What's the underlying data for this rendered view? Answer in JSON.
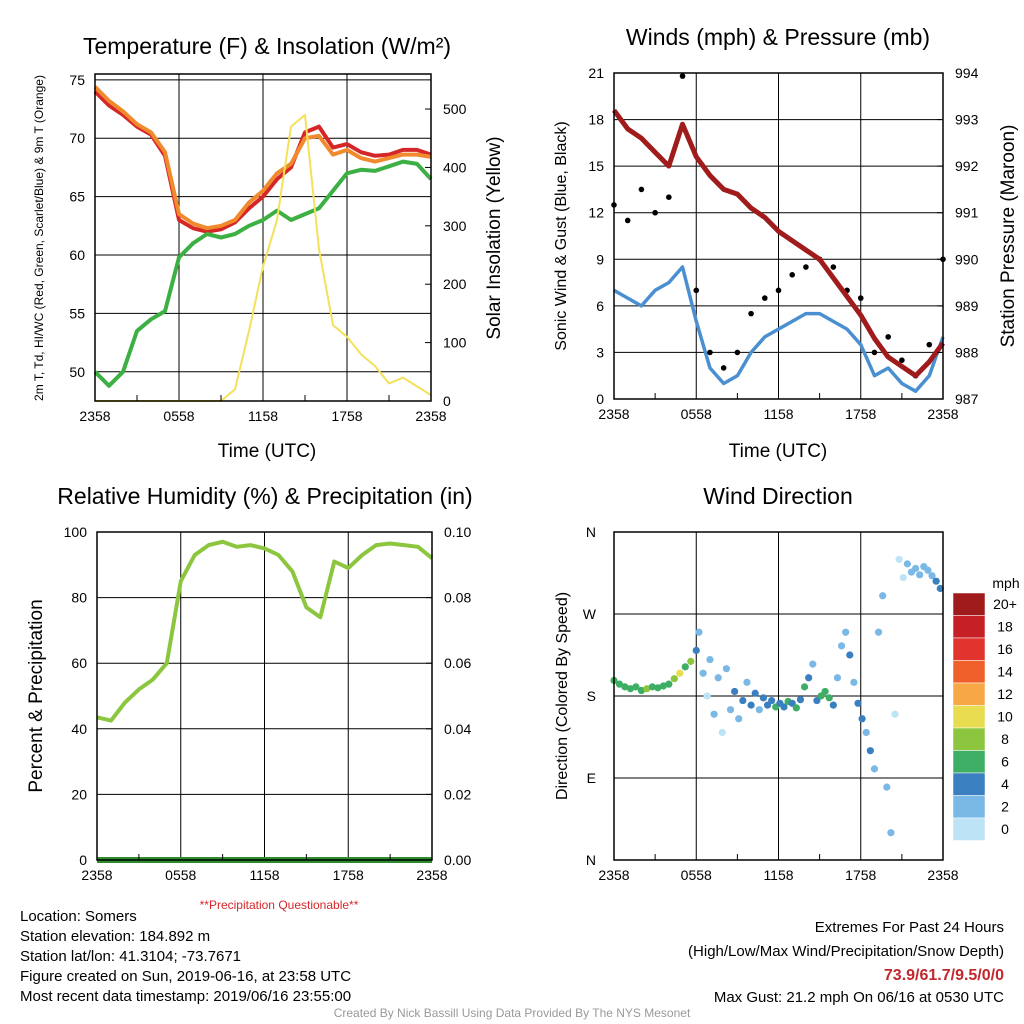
{
  "colors": {
    "red": "#d62728",
    "orange": "#f08a2c",
    "green": "#3cb043",
    "yellow": "#f5e05a",
    "blue": "#4a90d0",
    "black": "#000000",
    "maroon": "#a01c1c",
    "rh_green": "#8cc63f",
    "precip_green": "#2e8b2e",
    "warning_red": "#d62728"
  },
  "x_ticks": [
    "2358",
    "0558",
    "1158",
    "1758",
    "2358"
  ],
  "footer": {
    "location": "Location: Somers",
    "elevation": "Station elevation: 184.892 m",
    "latlon": "Station lat/lon: 41.3104; -73.7671",
    "created": "Figure created on Sun, 2019-06-16, at 23:58 UTC",
    "recent": "Most recent data timestamp: 2019/06/16 23:55:00",
    "extremes_title": "Extremes For Past 24 Hours",
    "extremes_sub": "(High/Low/Max Wind/Precipitation/Snow Depth)",
    "extremes_values": "73.9/61.7/9.5/0/0",
    "max_gust": "Max Gust: 21.2 mph On 06/16 at 0530 UTC",
    "credit": "Created By Nick Bassill Using Data Provided By The NYS Mesonet"
  },
  "chart_data": [
    {
      "type": "line",
      "title": "Temperature (F) & Insolation (W/m²)",
      "xlabel": "Time (UTC)",
      "ylabel": "2m T, Td, HI/WC (Red, Green, Scarlet/Blue) & 9m T (Orange)",
      "ylabel_right": "Solar Insolation (Yellow)",
      "ylim": [
        47.5,
        75.5
      ],
      "y2lim": [
        0,
        560
      ],
      "yticks": [
        50,
        55,
        60,
        65,
        70,
        75
      ],
      "y2ticks": [
        0,
        100,
        200,
        300,
        400,
        500
      ],
      "x": [
        0,
        1,
        2,
        3,
        4,
        5,
        6,
        7,
        8,
        9,
        10,
        11,
        12,
        13,
        14,
        15,
        16,
        17,
        18,
        19,
        20,
        21,
        22,
        23,
        24
      ],
      "series": [
        {
          "color": "red",
          "values": [
            74.0,
            72.8,
            72.0,
            71.0,
            70.3,
            68.5,
            63.0,
            62.3,
            62.0,
            62.2,
            62.8,
            64.0,
            65.0,
            66.5,
            67.5,
            70.5,
            71.0,
            69.2,
            69.5,
            68.8,
            68.5,
            68.6,
            69.0,
            69.0,
            68.6
          ]
        },
        {
          "color": "orange",
          "values": [
            74.4,
            73.2,
            72.3,
            71.2,
            70.5,
            68.8,
            63.5,
            62.7,
            62.3,
            62.5,
            63.0,
            64.5,
            65.5,
            67.0,
            67.8,
            70.0,
            70.2,
            68.6,
            69.0,
            68.3,
            68.0,
            68.3,
            68.6,
            68.6,
            68.4
          ]
        },
        {
          "color": "green",
          "values": [
            50.0,
            48.8,
            50.0,
            53.5,
            54.5,
            55.2,
            59.8,
            61.0,
            61.8,
            61.5,
            61.8,
            62.5,
            63.0,
            63.8,
            63.0,
            63.5,
            64.0,
            65.5,
            67.0,
            67.3,
            67.2,
            67.6,
            68.0,
            67.8,
            66.5
          ]
        },
        {
          "color": "yellow",
          "axis": "right",
          "values": [
            0,
            0,
            0,
            0,
            0,
            0,
            0,
            0,
            0,
            0,
            20,
            120,
            230,
            310,
            470,
            490,
            260,
            130,
            110,
            80,
            60,
            30,
            40,
            25,
            10
          ]
        }
      ]
    },
    {
      "type": "line",
      "title": "Winds (mph) & Pressure (mb)",
      "xlabel": "Time (UTC)",
      "ylabel": "Sonic Wind & Gust (Blue, Black)",
      "ylabel_right": "Station Pressure (Maroon)",
      "ylim": [
        0,
        21
      ],
      "y2lim": [
        987,
        994
      ],
      "yticks": [
        0,
        3,
        6,
        9,
        12,
        15,
        18,
        21
      ],
      "y2ticks": [
        987,
        988,
        989,
        990,
        991,
        992,
        993,
        994
      ],
      "x": [
        0,
        1,
        2,
        3,
        4,
        5,
        6,
        7,
        8,
        9,
        10,
        11,
        12,
        13,
        14,
        15,
        16,
        17,
        18,
        19,
        20,
        21,
        22,
        23,
        24
      ],
      "series": [
        {
          "color": "blue",
          "values": [
            7.0,
            6.5,
            6.0,
            7.0,
            7.5,
            8.5,
            5.0,
            2.0,
            1.0,
            1.5,
            3.0,
            4.0,
            4.5,
            5.0,
            5.5,
            5.5,
            5.0,
            4.5,
            3.5,
            1.5,
            2.0,
            1.0,
            0.5,
            1.5,
            4.0
          ]
        },
        {
          "color": "black",
          "style": "points",
          "values": [
            12.5,
            11.5,
            13.5,
            12.0,
            13.0,
            20.8,
            7.0,
            3.0,
            2.0,
            3.0,
            5.5,
            6.5,
            7.0,
            8.0,
            8.5,
            9.0,
            8.5,
            7.0,
            6.5,
            3.0,
            4.0,
            2.5,
            1.5,
            3.5,
            9.0
          ]
        },
        {
          "color": "maroon",
          "axis": "right",
          "values": [
            993.2,
            992.8,
            992.6,
            992.3,
            992.0,
            992.9,
            992.2,
            991.8,
            991.5,
            991.4,
            991.1,
            990.9,
            990.6,
            990.4,
            990.2,
            990.0,
            989.6,
            989.2,
            988.8,
            988.3,
            987.9,
            987.7,
            987.5,
            987.8,
            988.2
          ]
        }
      ]
    },
    {
      "type": "line",
      "title": "Relative Humidity (%) & Precipitation (in)",
      "xlabel": "",
      "ylabel": "Percent & Precipitation",
      "ylim": [
        0,
        100
      ],
      "y2lim": [
        0,
        0.1
      ],
      "yticks": [
        0,
        20,
        40,
        60,
        80,
        100
      ],
      "y2ticks": [
        "0.00",
        "0.02",
        "0.04",
        "0.06",
        "0.08",
        "0.10"
      ],
      "note": "**Precipitation Questionable**",
      "x": [
        0,
        1,
        2,
        3,
        4,
        5,
        6,
        7,
        8,
        9,
        10,
        11,
        12,
        13,
        14,
        15,
        16,
        17,
        18,
        19,
        20,
        21,
        22,
        23,
        24
      ],
      "series": [
        {
          "color": "rh_green",
          "values": [
            43.5,
            42.5,
            48.0,
            52.0,
            55.0,
            60.0,
            85.0,
            93.0,
            96.0,
            97.0,
            95.5,
            96.0,
            95.0,
            93.0,
            88.0,
            77.0,
            74.0,
            91.0,
            89.0,
            93.0,
            96.0,
            96.5,
            96.0,
            95.5,
            92.0
          ]
        },
        {
          "color": "precip_green",
          "axis": "right",
          "values": [
            0,
            0,
            0,
            0,
            0,
            0,
            0,
            0,
            0,
            0,
            0,
            0,
            0,
            0,
            0,
            0,
            0,
            0,
            0,
            0,
            0,
            0,
            0,
            0,
            0
          ]
        }
      ]
    },
    {
      "type": "scatter",
      "title": "Wind Direction",
      "xlabel": "",
      "ylabel": "Direction (Colored By Speed)",
      "yticks": [
        "N",
        "E",
        "S",
        "W",
        "N"
      ],
      "ylim": [
        0,
        360
      ],
      "colorbar": {
        "title": "mph",
        "labels": [
          "20+",
          "18",
          "16",
          "14",
          "12",
          "10",
          "8",
          "6",
          "4",
          "2",
          "0"
        ],
        "colors": [
          "#a01c1c",
          "#c62026",
          "#e0342c",
          "#f0602a",
          "#f7a745",
          "#e8dd50",
          "#8cc63f",
          "#3dae63",
          "#3a7fc0",
          "#7ab8e6",
          "#bde4f6"
        ]
      },
      "points": [
        {
          "x": 0.0,
          "dir": 197,
          "speed": 7
        },
        {
          "x": 0.4,
          "dir": 193,
          "speed": 7
        },
        {
          "x": 0.8,
          "dir": 190,
          "speed": 6
        },
        {
          "x": 1.2,
          "dir": 188,
          "speed": 7
        },
        {
          "x": 1.6,
          "dir": 190,
          "speed": 6
        },
        {
          "x": 2.0,
          "dir": 186,
          "speed": 7
        },
        {
          "x": 2.4,
          "dir": 188,
          "speed": 8
        },
        {
          "x": 2.8,
          "dir": 190,
          "speed": 7
        },
        {
          "x": 3.2,
          "dir": 189,
          "speed": 6
        },
        {
          "x": 3.6,
          "dir": 191,
          "speed": 7
        },
        {
          "x": 4.0,
          "dir": 193,
          "speed": 7
        },
        {
          "x": 4.4,
          "dir": 199,
          "speed": 8
        },
        {
          "x": 4.8,
          "dir": 205,
          "speed": 10
        },
        {
          "x": 5.2,
          "dir": 212,
          "speed": 7
        },
        {
          "x": 5.6,
          "dir": 218,
          "speed": 8
        },
        {
          "x": 6.0,
          "dir": 230,
          "speed": 4
        },
        {
          "x": 6.2,
          "dir": 250,
          "speed": 2
        },
        {
          "x": 6.5,
          "dir": 205,
          "speed": 3
        },
        {
          "x": 6.8,
          "dir": 180,
          "speed": 1
        },
        {
          "x": 7.0,
          "dir": 220,
          "speed": 3
        },
        {
          "x": 7.3,
          "dir": 160,
          "speed": 2
        },
        {
          "x": 7.6,
          "dir": 200,
          "speed": 2
        },
        {
          "x": 7.9,
          "dir": 140,
          "speed": 1
        },
        {
          "x": 8.2,
          "dir": 210,
          "speed": 2
        },
        {
          "x": 8.5,
          "dir": 165,
          "speed": 3
        },
        {
          "x": 8.8,
          "dir": 185,
          "speed": 4
        },
        {
          "x": 9.1,
          "dir": 155,
          "speed": 3
        },
        {
          "x": 9.4,
          "dir": 175,
          "speed": 4
        },
        {
          "x": 9.7,
          "dir": 195,
          "speed": 3
        },
        {
          "x": 10.0,
          "dir": 170,
          "speed": 4
        },
        {
          "x": 10.3,
          "dir": 183,
          "speed": 4
        },
        {
          "x": 10.6,
          "dir": 165,
          "speed": 3
        },
        {
          "x": 10.9,
          "dir": 178,
          "speed": 5
        },
        {
          "x": 11.2,
          "dir": 170,
          "speed": 4
        },
        {
          "x": 11.5,
          "dir": 175,
          "speed": 4
        },
        {
          "x": 11.8,
          "dir": 168,
          "speed": 6
        },
        {
          "x": 12.1,
          "dir": 172,
          "speed": 4
        },
        {
          "x": 12.4,
          "dir": 168,
          "speed": 5
        },
        {
          "x": 12.7,
          "dir": 174,
          "speed": 6
        },
        {
          "x": 13.0,
          "dir": 172,
          "speed": 5
        },
        {
          "x": 13.3,
          "dir": 167,
          "speed": 6
        },
        {
          "x": 13.6,
          "dir": 176,
          "speed": 5
        },
        {
          "x": 13.9,
          "dir": 190,
          "speed": 6
        },
        {
          "x": 14.2,
          "dir": 200,
          "speed": 4
        },
        {
          "x": 14.5,
          "dir": 215,
          "speed": 3
        },
        {
          "x": 14.8,
          "dir": 175,
          "speed": 5
        },
        {
          "x": 15.1,
          "dir": 180,
          "speed": 6
        },
        {
          "x": 15.4,
          "dir": 185,
          "speed": 7
        },
        {
          "x": 15.7,
          "dir": 178,
          "speed": 6
        },
        {
          "x": 16.0,
          "dir": 170,
          "speed": 4
        },
        {
          "x": 16.3,
          "dir": 200,
          "speed": 3
        },
        {
          "x": 16.6,
          "dir": 235,
          "speed": 3
        },
        {
          "x": 16.9,
          "dir": 250,
          "speed": 2
        },
        {
          "x": 17.2,
          "dir": 225,
          "speed": 4
        },
        {
          "x": 17.5,
          "dir": 195,
          "speed": 3
        },
        {
          "x": 17.8,
          "dir": 172,
          "speed": 5
        },
        {
          "x": 18.1,
          "dir": 155,
          "speed": 4
        },
        {
          "x": 18.4,
          "dir": 140,
          "speed": 3
        },
        {
          "x": 18.7,
          "dir": 120,
          "speed": 4
        },
        {
          "x": 19.0,
          "dir": 100,
          "speed": 2
        },
        {
          "x": 19.3,
          "dir": 250,
          "speed": 2
        },
        {
          "x": 19.6,
          "dir": 290,
          "speed": 3
        },
        {
          "x": 19.9,
          "dir": 80,
          "speed": 3
        },
        {
          "x": 20.2,
          "dir": 30,
          "speed": 2
        },
        {
          "x": 20.5,
          "dir": 160,
          "speed": 1
        },
        {
          "x": 20.8,
          "dir": 330,
          "speed": 1
        },
        {
          "x": 21.1,
          "dir": 310,
          "speed": 1
        },
        {
          "x": 21.4,
          "dir": 325,
          "speed": 2
        },
        {
          "x": 21.7,
          "dir": 316,
          "speed": 2
        },
        {
          "x": 22.0,
          "dir": 320,
          "speed": 3
        },
        {
          "x": 22.3,
          "dir": 313,
          "speed": 2
        },
        {
          "x": 22.6,
          "dir": 322,
          "speed": 3
        },
        {
          "x": 22.9,
          "dir": 318,
          "speed": 2
        },
        {
          "x": 23.2,
          "dir": 312,
          "speed": 3
        },
        {
          "x": 23.5,
          "dir": 306,
          "speed": 4
        },
        {
          "x": 23.8,
          "dir": 298,
          "speed": 4
        }
      ]
    }
  ]
}
